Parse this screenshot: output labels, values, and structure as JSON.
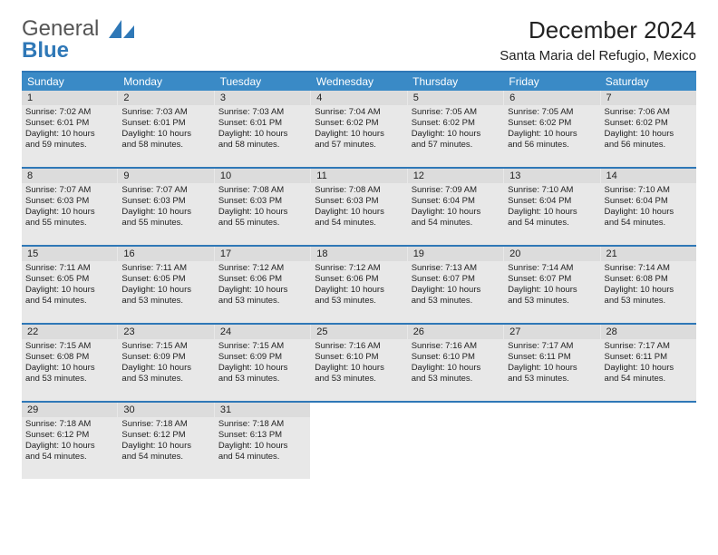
{
  "brand": {
    "line1": "General",
    "line2": "Blue"
  },
  "title": "December 2024",
  "location": "Santa Maria del Refugio, Mexico",
  "colors": {
    "accent": "#2f78b7",
    "header_bg": "#3a8ac6",
    "header_fg": "#ffffff",
    "cell_bg": "#e8e8e8",
    "daynum_bg": "#dcdcdc",
    "text": "#222222"
  },
  "day_names": [
    "Sunday",
    "Monday",
    "Tuesday",
    "Wednesday",
    "Thursday",
    "Friday",
    "Saturday"
  ],
  "weeks": [
    [
      {
        "n": "1",
        "sr": "7:02 AM",
        "ss": "6:01 PM",
        "dh": "10",
        "dm": "59"
      },
      {
        "n": "2",
        "sr": "7:03 AM",
        "ss": "6:01 PM",
        "dh": "10",
        "dm": "58"
      },
      {
        "n": "3",
        "sr": "7:03 AM",
        "ss": "6:01 PM",
        "dh": "10",
        "dm": "58"
      },
      {
        "n": "4",
        "sr": "7:04 AM",
        "ss": "6:02 PM",
        "dh": "10",
        "dm": "57"
      },
      {
        "n": "5",
        "sr": "7:05 AM",
        "ss": "6:02 PM",
        "dh": "10",
        "dm": "57"
      },
      {
        "n": "6",
        "sr": "7:05 AM",
        "ss": "6:02 PM",
        "dh": "10",
        "dm": "56"
      },
      {
        "n": "7",
        "sr": "7:06 AM",
        "ss": "6:02 PM",
        "dh": "10",
        "dm": "56"
      }
    ],
    [
      {
        "n": "8",
        "sr": "7:07 AM",
        "ss": "6:03 PM",
        "dh": "10",
        "dm": "55"
      },
      {
        "n": "9",
        "sr": "7:07 AM",
        "ss": "6:03 PM",
        "dh": "10",
        "dm": "55"
      },
      {
        "n": "10",
        "sr": "7:08 AM",
        "ss": "6:03 PM",
        "dh": "10",
        "dm": "55"
      },
      {
        "n": "11",
        "sr": "7:08 AM",
        "ss": "6:03 PM",
        "dh": "10",
        "dm": "54"
      },
      {
        "n": "12",
        "sr": "7:09 AM",
        "ss": "6:04 PM",
        "dh": "10",
        "dm": "54"
      },
      {
        "n": "13",
        "sr": "7:10 AM",
        "ss": "6:04 PM",
        "dh": "10",
        "dm": "54"
      },
      {
        "n": "14",
        "sr": "7:10 AM",
        "ss": "6:04 PM",
        "dh": "10",
        "dm": "54"
      }
    ],
    [
      {
        "n": "15",
        "sr": "7:11 AM",
        "ss": "6:05 PM",
        "dh": "10",
        "dm": "54"
      },
      {
        "n": "16",
        "sr": "7:11 AM",
        "ss": "6:05 PM",
        "dh": "10",
        "dm": "53"
      },
      {
        "n": "17",
        "sr": "7:12 AM",
        "ss": "6:06 PM",
        "dh": "10",
        "dm": "53"
      },
      {
        "n": "18",
        "sr": "7:12 AM",
        "ss": "6:06 PM",
        "dh": "10",
        "dm": "53"
      },
      {
        "n": "19",
        "sr": "7:13 AM",
        "ss": "6:07 PM",
        "dh": "10",
        "dm": "53"
      },
      {
        "n": "20",
        "sr": "7:14 AM",
        "ss": "6:07 PM",
        "dh": "10",
        "dm": "53"
      },
      {
        "n": "21",
        "sr": "7:14 AM",
        "ss": "6:08 PM",
        "dh": "10",
        "dm": "53"
      }
    ],
    [
      {
        "n": "22",
        "sr": "7:15 AM",
        "ss": "6:08 PM",
        "dh": "10",
        "dm": "53"
      },
      {
        "n": "23",
        "sr": "7:15 AM",
        "ss": "6:09 PM",
        "dh": "10",
        "dm": "53"
      },
      {
        "n": "24",
        "sr": "7:15 AM",
        "ss": "6:09 PM",
        "dh": "10",
        "dm": "53"
      },
      {
        "n": "25",
        "sr": "7:16 AM",
        "ss": "6:10 PM",
        "dh": "10",
        "dm": "53"
      },
      {
        "n": "26",
        "sr": "7:16 AM",
        "ss": "6:10 PM",
        "dh": "10",
        "dm": "53"
      },
      {
        "n": "27",
        "sr": "7:17 AM",
        "ss": "6:11 PM",
        "dh": "10",
        "dm": "53"
      },
      {
        "n": "28",
        "sr": "7:17 AM",
        "ss": "6:11 PM",
        "dh": "10",
        "dm": "54"
      }
    ],
    [
      {
        "n": "29",
        "sr": "7:18 AM",
        "ss": "6:12 PM",
        "dh": "10",
        "dm": "54"
      },
      {
        "n": "30",
        "sr": "7:18 AM",
        "ss": "6:12 PM",
        "dh": "10",
        "dm": "54"
      },
      {
        "n": "31",
        "sr": "7:18 AM",
        "ss": "6:13 PM",
        "dh": "10",
        "dm": "54"
      },
      null,
      null,
      null,
      null
    ]
  ]
}
